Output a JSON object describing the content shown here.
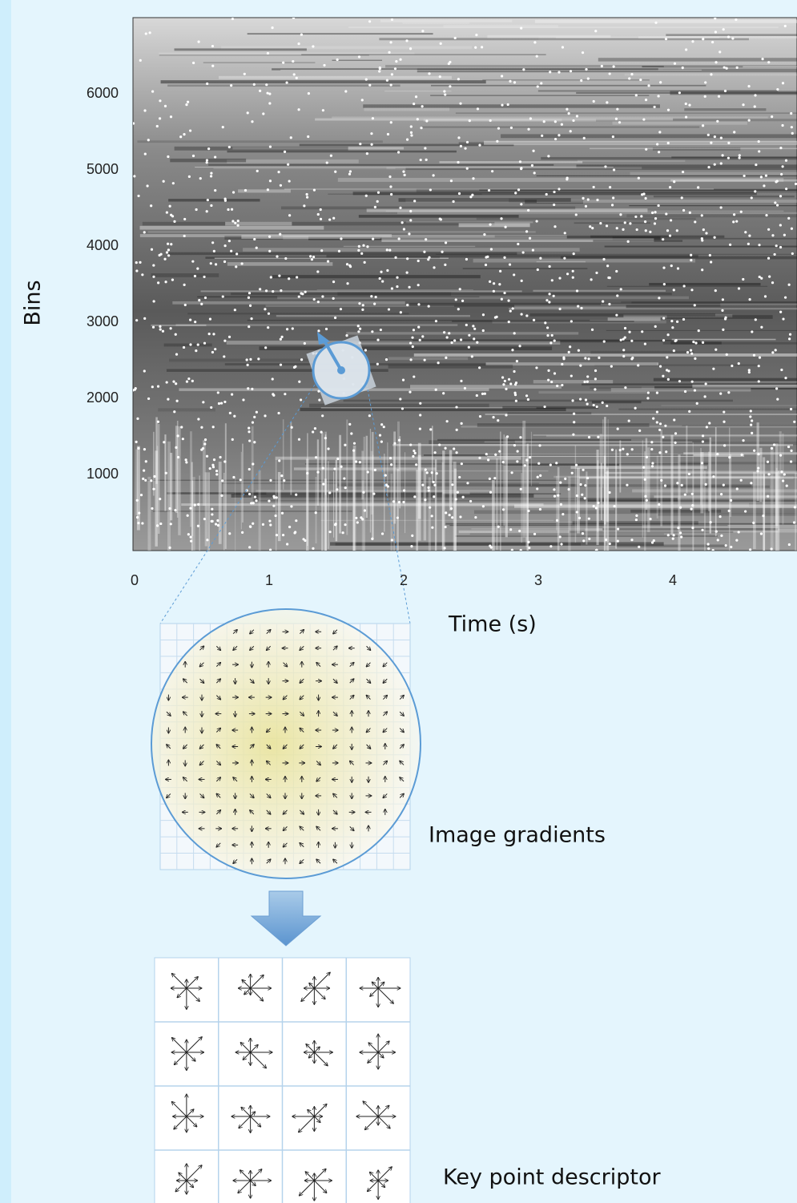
{
  "spectrogram": {
    "y_label": "Bins",
    "x_label": "Time (s)",
    "yticks": [
      1000,
      2000,
      3000,
      4000,
      5000,
      6000
    ],
    "xticks": [
      0,
      1,
      2,
      3,
      4
    ]
  },
  "gradients": {
    "label": "Image gradients"
  },
  "descriptor": {
    "label": "Key point descriptor"
  }
}
